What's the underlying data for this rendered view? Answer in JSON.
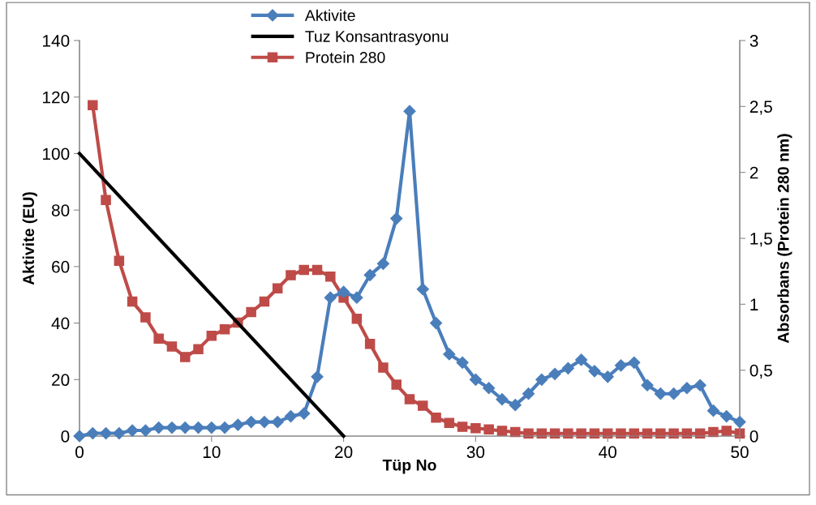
{
  "chart_data": {
    "type": "line",
    "xlabel": "Tüp No",
    "ylabel": "Aktivite (EU)",
    "y2label": "Absorbans (Protein 280 nm)",
    "xlim": [
      0,
      50
    ],
    "xticks": [
      0,
      10,
      20,
      30,
      40,
      50
    ],
    "ylim": [
      0,
      140
    ],
    "yticks": [
      0,
      20,
      40,
      60,
      80,
      100,
      120,
      140
    ],
    "y2lim": [
      0,
      3
    ],
    "y2ticks": [
      0,
      {
        "value": 0.5,
        "label": "0,5"
      },
      1,
      {
        "value": 1.5,
        "label": "1,5"
      },
      2,
      {
        "value": 2.5,
        "label": "2,5"
      },
      3
    ],
    "grid": false,
    "legend": "top",
    "series": [
      {
        "name": "Aktivite",
        "color": "#4a7ebb",
        "marker": "diamond",
        "x": [
          0,
          1,
          2,
          3,
          4,
          5,
          6,
          7,
          8,
          9,
          10,
          11,
          12,
          13,
          14,
          15,
          16,
          17,
          18,
          19,
          20,
          21,
          22,
          23,
          24,
          25,
          26,
          27,
          28,
          29,
          30,
          31,
          32,
          33,
          34,
          35,
          36,
          37,
          38,
          39,
          40,
          41,
          42,
          43,
          44,
          45,
          46,
          47,
          48,
          49,
          50
        ],
        "values": [
          0,
          1,
          1,
          1,
          2,
          2,
          3,
          3,
          3,
          3,
          3,
          3,
          4,
          5,
          5,
          5,
          7,
          8,
          21,
          49,
          51,
          49,
          57,
          61,
          77,
          115,
          52,
          40,
          29,
          26,
          20,
          17,
          13,
          11,
          15,
          20,
          22,
          24,
          27,
          23,
          21,
          25,
          26,
          18,
          15,
          15,
          17,
          18,
          9,
          7,
          5
        ]
      },
      {
        "name": "Tuz Konsantrasyonu",
        "color": "#000000",
        "marker": "none",
        "x": [
          0,
          20
        ],
        "values": [
          100,
          0
        ]
      },
      {
        "name": "Protein 280",
        "color": "#be4b48",
        "marker": "square",
        "axis": "y2",
        "x": [
          1,
          2,
          3,
          4,
          5,
          6,
          7,
          8,
          9,
          10,
          11,
          12,
          13,
          14,
          15,
          16,
          17,
          18,
          19,
          20,
          21,
          22,
          23,
          24,
          25,
          26,
          27,
          28,
          29,
          30,
          31,
          32,
          33,
          34,
          35,
          36,
          37,
          38,
          39,
          40,
          41,
          42,
          43,
          44,
          45,
          46,
          47,
          48,
          49,
          50
        ],
        "values": [
          2.51,
          1.79,
          1.33,
          1.02,
          0.9,
          0.74,
          0.68,
          0.6,
          0.66,
          0.76,
          0.81,
          0.86,
          0.94,
          1.02,
          1.12,
          1.22,
          1.26,
          1.26,
          1.21,
          1.05,
          0.89,
          0.7,
          0.52,
          0.39,
          0.28,
          0.23,
          0.14,
          0.1,
          0.07,
          0.06,
          0.05,
          0.04,
          0.03,
          0.02,
          0.02,
          0.02,
          0.02,
          0.02,
          0.02,
          0.02,
          0.02,
          0.02,
          0.02,
          0.02,
          0.02,
          0.02,
          0.02,
          0.03,
          0.04,
          0.02
        ]
      }
    ]
  }
}
